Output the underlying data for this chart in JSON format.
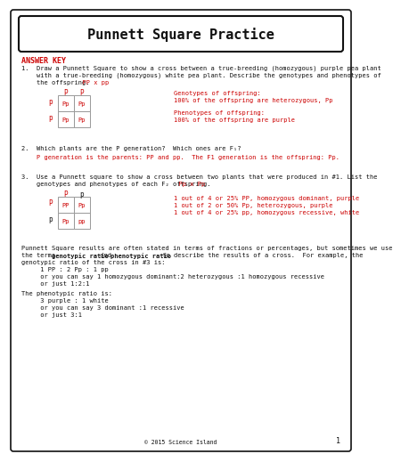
{
  "title": "Punnett Square Practice",
  "answer_key": "ANSWER KEY",
  "bg_color": "#ffffff",
  "border_color": "#000000",
  "red": "#cc0000",
  "black": "#111111",
  "q1_line1": "1.  Draw a Punnett Square to show a cross between a true-breeding (homozygous) purple pea plant",
  "q1_line2": "    with a true-breeding (homozygous) white pea plant. Describe the genotypes and phenotypes of",
  "q1_line3a": "    the offspring.",
  "q1_line3b": "  PP x pp",
  "q1_col_labels": [
    "P",
    "P"
  ],
  "q1_row_labels": [
    "p",
    "p"
  ],
  "q1_cells": [
    [
      "Pp",
      "Pp"
    ],
    [
      "Pp",
      "Pp"
    ]
  ],
  "q1_geno_label": "Genotypes of offspring:",
  "q1_geno_val": "100% of the offspring are heterozygous, Pp",
  "q1_pheno_label": "Phenotypes of offspring:",
  "q1_pheno_val": "100% of the offspring are purple",
  "q2_line1": "2.  Which plants are the P generation?  Which ones are F₁?",
  "q2_ans": "    P generation is the parents: PP and pp.  The F1 generation is the offspring: Pp.",
  "q3_line1": "3.  Use a Punnett square to show a cross between two plants that were produced in #1. List the",
  "q3_line2a": "    genotypes and phenotypes of each F₂ offspring.",
  "q3_line2b": "  Pp x Pp",
  "q3_col_labels": [
    "P",
    "p"
  ],
  "q3_row_labels": [
    "P",
    "p"
  ],
  "q3_cells": [
    [
      "PP",
      "Pp"
    ],
    [
      "Pp",
      "pp"
    ]
  ],
  "q3_ans1": "1 out of 4 or 25% PP, homozygous dominant, purple",
  "q3_ans2": "1 out of 2 or 50% Pp, heterozygous, purple",
  "q3_ans3": "1 out of 4 or 25% pp, homozygous recessive, white",
  "para1": "Punnett Square results are often stated in terms of fractions or percentages, but sometimes we use",
  "para2a": "the terms ",
  "para2b": "genotypic ratio",
  "para2c": " and ",
  "para2d": "phenotypic ratio",
  "para2e": " to describe the results of a cross.  For example, the",
  "para3": "genotypic ratio of the cross in #3 is:",
  "para4": "     1 PP : 2 Pp : 1 pp",
  "para5": "     or you can say 1 homozygous dominant:2 heterozygous :1 homozygous recessive",
  "para6": "     or just 1:2:1",
  "para7": "The phenotypic ratio is:",
  "para8": "     3 purple : 1 white",
  "para9": "     or you can say 3 dominant :1 recessive",
  "para10": "     or just 3:1",
  "footer": "© 2015 Science Island",
  "page_num": "1"
}
